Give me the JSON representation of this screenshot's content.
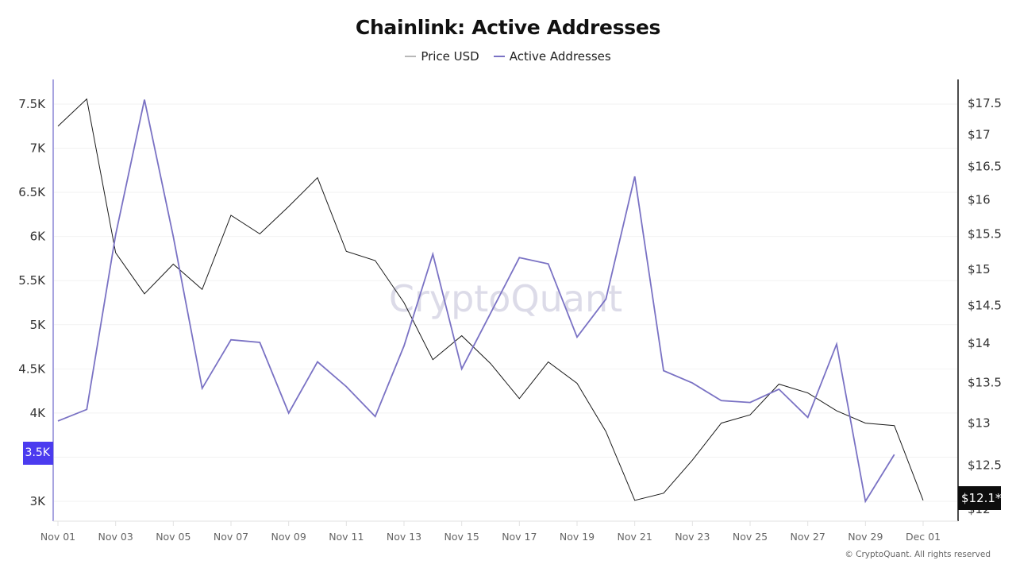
{
  "header": {
    "title": "Chainlink: Active Addresses"
  },
  "legend": [
    {
      "label": "Price USD",
      "color": "#b8b8b8"
    },
    {
      "label": "Active Addresses",
      "color": "#7a72c4"
    }
  ],
  "watermark": "CryptoQuant",
  "copyright": "© CryptoQuant. All rights reserved",
  "badges": {
    "left_current": "3.5K",
    "right_current": "$12.1*"
  },
  "colors": {
    "active_addresses": "#7a72c4",
    "price": "#1a1a1a",
    "left_axis": "#8c86d6",
    "right_axis": "#111111",
    "left_badge": "#4b3bef",
    "right_badge": "#0d0d0d",
    "grid": "#f2f2f2"
  },
  "chart_data": {
    "type": "line",
    "title": "Chainlink: Active Addresses",
    "xlabel": "",
    "ylabel_left": "Active Addresses",
    "ylabel_right": "Price USD",
    "grid": true,
    "legend_position": "top-center",
    "x": [
      "Nov 01",
      "Nov 02",
      "Nov 03",
      "Nov 04",
      "Nov 05",
      "Nov 06",
      "Nov 07",
      "Nov 08",
      "Nov 09",
      "Nov 10",
      "Nov 11",
      "Nov 12",
      "Nov 13",
      "Nov 14",
      "Nov 15",
      "Nov 16",
      "Nov 17",
      "Nov 18",
      "Nov 19",
      "Nov 20",
      "Nov 21",
      "Nov 22",
      "Nov 23",
      "Nov 24",
      "Nov 25",
      "Nov 26",
      "Nov 27",
      "Nov 28",
      "Nov 29",
      "Nov 30",
      "Dec 01"
    ],
    "x_tick_labels": [
      "Nov 01",
      "Nov 03",
      "Nov 05",
      "Nov 07",
      "Nov 09",
      "Nov 11",
      "Nov 13",
      "Nov 15",
      "Nov 17",
      "Nov 19",
      "Nov 21",
      "Nov 23",
      "Nov 25",
      "Nov 27",
      "Nov 29",
      "Dec 01"
    ],
    "y_left_ticks": [
      "7.5K",
      "7K",
      "6.5K",
      "6K",
      "5.5K",
      "5K",
      "4.5K",
      "4K",
      "3.5K",
      "3K"
    ],
    "y_left_range": [
      2770,
      7780
    ],
    "y_right_ticks": [
      "$17.5",
      "$17",
      "$16.5",
      "$16",
      "$15.5",
      "$15",
      "$14.5",
      "$14",
      "$13.5",
      "$13",
      "$12.5",
      "$12"
    ],
    "y_right_scale": "log",
    "series": [
      {
        "name": "Active Addresses",
        "axis": "left",
        "values": [
          3910,
          4040,
          6020,
          7550,
          6000,
          4280,
          4830,
          4800,
          4000,
          4580,
          4300,
          3960,
          4760,
          5800,
          4500,
          5130,
          5760,
          5690,
          4860,
          5290,
          6680,
          4480,
          4340,
          4140,
          4120,
          4270,
          3950,
          4780,
          3000,
          3530,
          null
        ]
      },
      {
        "name": "Price USD",
        "axis": "right",
        "values": [
          17.13,
          17.57,
          15.23,
          14.66,
          15.07,
          14.72,
          15.77,
          15.5,
          15.9,
          16.33,
          15.25,
          15.12,
          14.54,
          13.79,
          14.1,
          13.74,
          13.3,
          13.76,
          13.49,
          12.9,
          12.1,
          12.18,
          12.56,
          13.0,
          13.1,
          13.48,
          13.37,
          13.15,
          13.0,
          12.97,
          12.1
        ]
      }
    ]
  }
}
